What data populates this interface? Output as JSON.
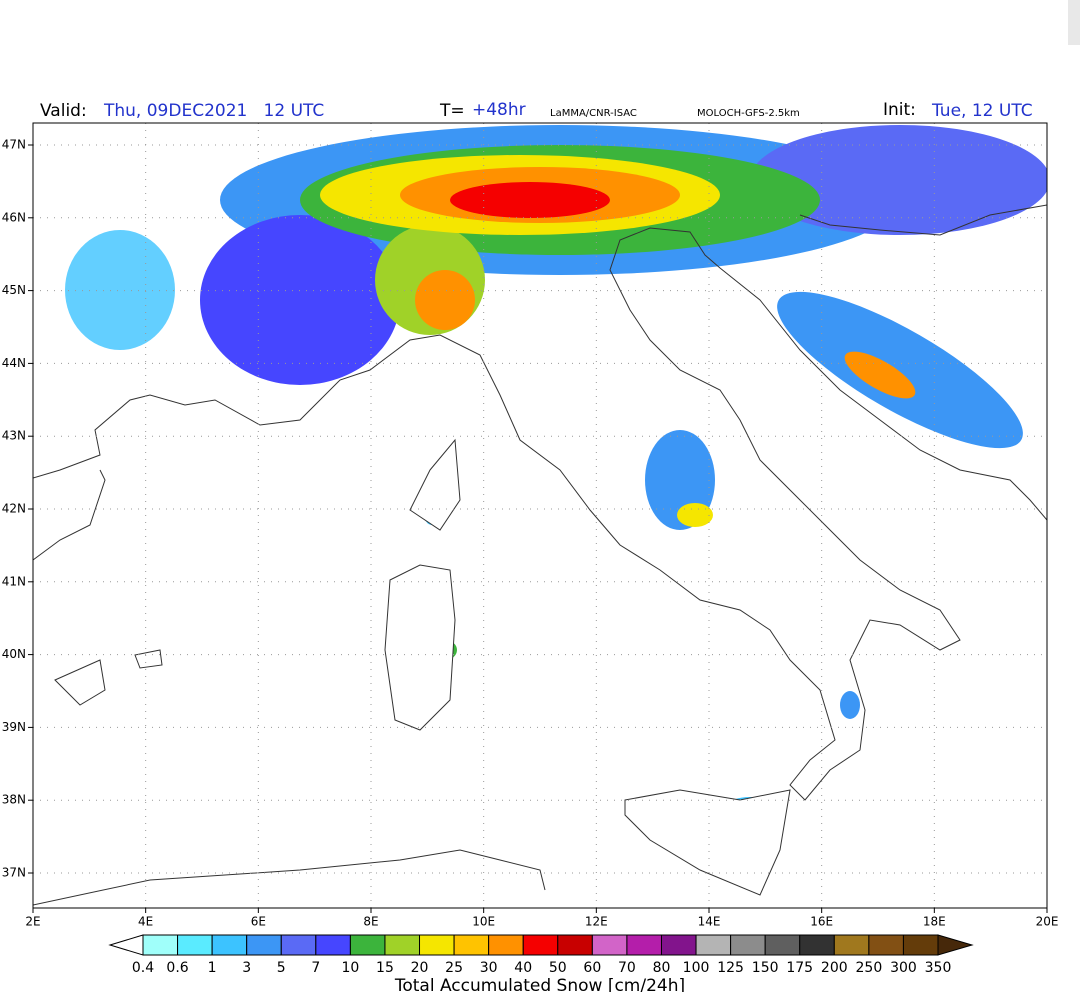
{
  "header": {
    "valid_label": "Valid:",
    "valid": "Thu, 09DEC2021   12 UTC",
    "t_label": "T=",
    "t_value": "+48hr",
    "source": "LaMMA/CNR-ISAC",
    "model": "MOLOCH-GFS-2.5km",
    "init_label": "Init:",
    "init": "Tue, 12 UTC"
  },
  "map": {
    "lat_labels": [
      "47N",
      "46N",
      "45N",
      "44N",
      "43N",
      "42N",
      "41N",
      "40N",
      "39N",
      "38N",
      "37N"
    ],
    "lon_labels": [
      "2E",
      "4E",
      "6E",
      "8E",
      "10E",
      "12E",
      "14E",
      "16E",
      "18E",
      "20E"
    ]
  },
  "colorbar": {
    "labels": [
      "0.4",
      "0.6",
      "1",
      "3",
      "5",
      "7",
      "10",
      "15",
      "20",
      "25",
      "30",
      "40",
      "50",
      "60",
      "70",
      "80",
      "100",
      "125",
      "150",
      "175",
      "200",
      "250",
      "300",
      "350"
    ],
    "colors": [
      "#a0fffa",
      "#5aebff",
      "#3cc3ff",
      "#3c96f5",
      "#5a6af5",
      "#4646ff",
      "#3cb43c",
      "#a0d228",
      "#f5e600",
      "#ffc300",
      "#ff9100",
      "#f50000",
      "#c80000",
      "#d264c8",
      "#b41eaa",
      "#82148c",
      "#b4b4b4",
      "#8c8c8c",
      "#5f5f5f",
      "#323232",
      "#a0781e",
      "#825014",
      "#643c0a",
      "#46280a"
    ],
    "title": "Total Accumulated Snow [cm/24h]"
  }
}
